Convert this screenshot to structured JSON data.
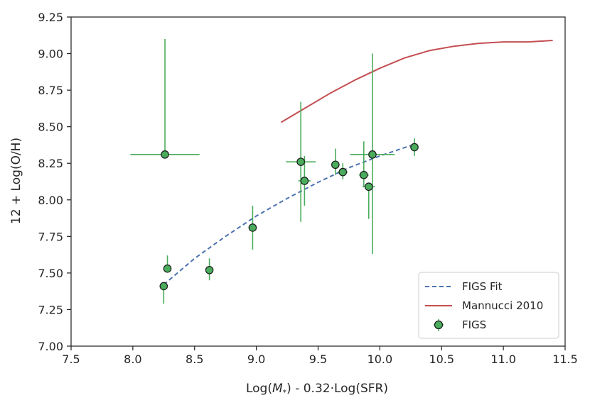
{
  "chart_data": {
    "type": "scatter",
    "title": "",
    "xlabel_prefix": "Log(",
    "xlabel_italic": "M",
    "xlabel_sub": "*",
    "xlabel_suffix": ") - 0.32·Log(SFR)",
    "ylabel": "12 + Log(O/H)",
    "xlim": [
      7.5,
      11.5
    ],
    "ylim": [
      7.0,
      9.25
    ],
    "xticks": [
      "7.5",
      "8.0",
      "8.5",
      "9.0",
      "9.5",
      "10.0",
      "10.5",
      "11.0",
      "11.5"
    ],
    "yticks": [
      "7.00",
      "7.25",
      "7.50",
      "7.75",
      "8.00",
      "8.25",
      "8.50",
      "8.75",
      "9.00",
      "9.25"
    ],
    "grid": false,
    "legend_position": "lower-right",
    "colors": {
      "figs": "#4aac5c",
      "figs_edge": "#1a1a1a",
      "fit": "#4c72b0",
      "mannucci": "#c44e52"
    },
    "series": [
      {
        "name": "FIGS",
        "kind": "errorbar",
        "points": [
          {
            "x": 8.26,
            "y": 8.31,
            "xerr": 0.28,
            "yerr_lo": 0.0,
            "yerr_hi": 0.79
          },
          {
            "x": 8.25,
            "y": 7.41,
            "xerr": 0.0,
            "yerr_lo": 0.12,
            "yerr_hi": 0.0
          },
          {
            "x": 8.28,
            "y": 7.53,
            "xerr": 0.0,
            "yerr_lo": 0.0,
            "yerr_hi": 0.09
          },
          {
            "x": 8.62,
            "y": 7.52,
            "xerr": 0.0,
            "yerr_lo": 0.07,
            "yerr_hi": 0.08
          },
          {
            "x": 8.97,
            "y": 7.81,
            "xerr": 0.0,
            "yerr_lo": 0.15,
            "yerr_hi": 0.15
          },
          {
            "x": 9.36,
            "y": 8.26,
            "xerr": 0.12,
            "yerr_lo": 0.41,
            "yerr_hi": 0.41
          },
          {
            "x": 9.39,
            "y": 8.13,
            "xerr": 0.05,
            "yerr_lo": 0.17,
            "yerr_hi": 0.17
          },
          {
            "x": 9.64,
            "y": 8.24,
            "xerr": 0.0,
            "yerr_lo": 0.07,
            "yerr_hi": 0.11
          },
          {
            "x": 9.7,
            "y": 8.19,
            "xerr": 0.04,
            "yerr_lo": 0.05,
            "yerr_hi": 0.06
          },
          {
            "x": 9.87,
            "y": 8.17,
            "xerr": 0.04,
            "yerr_lo": 0.08,
            "yerr_hi": 0.23
          },
          {
            "x": 9.91,
            "y": 8.09,
            "xerr": 0.05,
            "yerr_lo": 0.22,
            "yerr_hi": 0.0
          },
          {
            "x": 9.94,
            "y": 8.31,
            "xerr": 0.18,
            "yerr_lo": 0.68,
            "yerr_hi": 0.69
          },
          {
            "x": 10.28,
            "y": 8.36,
            "xerr": 0.0,
            "yerr_lo": 0.06,
            "yerr_hi": 0.06
          }
        ]
      },
      {
        "name": "FIGS Fit",
        "kind": "line",
        "style": "dashed",
        "x": [
          8.25,
          8.5,
          8.75,
          9.0,
          9.25,
          9.5,
          9.75,
          10.0,
          10.28
        ],
        "y": [
          7.42,
          7.6,
          7.75,
          7.89,
          8.01,
          8.12,
          8.22,
          8.3,
          8.38
        ]
      },
      {
        "name": "Mannucci 2010",
        "kind": "line",
        "style": "solid",
        "x": [
          9.2,
          9.4,
          9.6,
          9.8,
          10.0,
          10.2,
          10.4,
          10.6,
          10.8,
          11.0,
          11.2,
          11.4
        ],
        "y": [
          8.53,
          8.63,
          8.73,
          8.82,
          8.9,
          8.97,
          9.02,
          9.05,
          9.07,
          9.08,
          9.08,
          9.09
        ]
      }
    ],
    "legend": [
      "FIGS Fit",
      "Mannucci 2010",
      "FIGS"
    ]
  }
}
